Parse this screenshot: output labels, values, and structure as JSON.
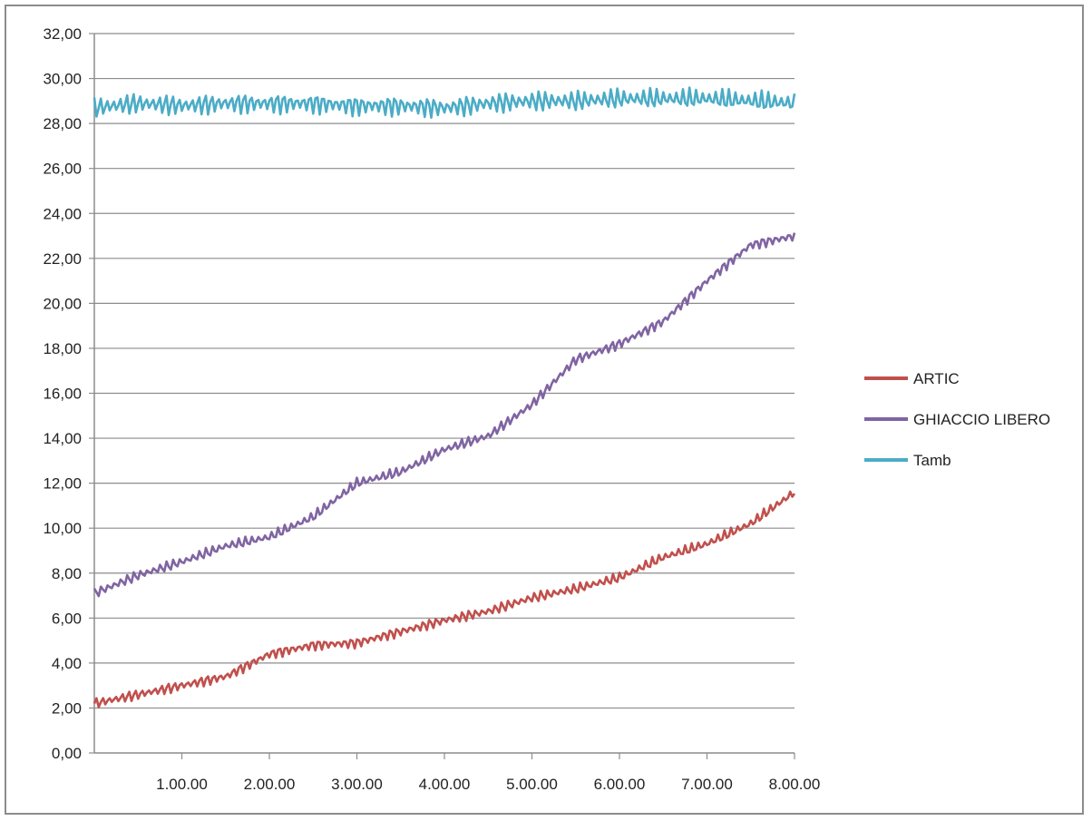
{
  "chart_data": {
    "type": "line",
    "title": "",
    "xlabel": "",
    "ylabel": "",
    "ylim": [
      0,
      32
    ],
    "xlim": [
      "0.00.00",
      "8.00.00"
    ],
    "y_ticks": [
      "0,00",
      "2,00",
      "4,00",
      "6,00",
      "8,00",
      "10,00",
      "12,00",
      "14,00",
      "16,00",
      "18,00",
      "20,00",
      "22,00",
      "24,00",
      "26,00",
      "28,00",
      "30,00",
      "32,00"
    ],
    "x_ticks": [
      "1.00.00",
      "2.00.00",
      "3.00.00",
      "4.00.00",
      "5.00.00",
      "6.00.00",
      "7.00.00",
      "8.00.00"
    ],
    "grid": "horizontal",
    "legend_position": "right",
    "x": [
      "0.00.00",
      "0.30.00",
      "1.00.00",
      "1.30.00",
      "2.00.00",
      "2.30.00",
      "3.00.00",
      "3.30.00",
      "4.00.00",
      "4.30.00",
      "5.00.00",
      "5.30.00",
      "6.00.00",
      "6.30.00",
      "7.00.00",
      "7.30.00",
      "8.00.00"
    ],
    "series": [
      {
        "name": "ARTIC",
        "color": "#c0504d",
        "values": [
          2.2,
          2.6,
          3.0,
          3.4,
          4.4,
          4.8,
          4.9,
          5.4,
          5.9,
          6.3,
          6.9,
          7.3,
          7.8,
          8.7,
          9.3,
          10.2,
          11.6
        ]
      },
      {
        "name": "GHIACCIO LIBERO",
        "color": "#8064a2",
        "values": [
          7.1,
          7.9,
          8.5,
          9.2,
          9.6,
          10.5,
          12.0,
          12.5,
          13.5,
          14.1,
          15.5,
          17.5,
          18.2,
          19.2,
          21.0,
          22.6,
          23.0
        ]
      },
      {
        "name": "Tamb",
        "color": "#4bacc6",
        "values": [
          28.7,
          28.9,
          28.8,
          28.9,
          28.9,
          28.9,
          28.8,
          28.8,
          28.7,
          28.9,
          29.0,
          29.0,
          29.1,
          29.1,
          29.1,
          29.0,
          28.9
        ]
      }
    ]
  }
}
